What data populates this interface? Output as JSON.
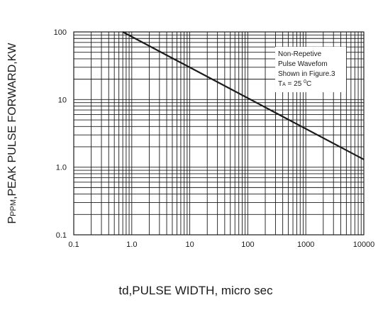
{
  "chart_data": {
    "type": "line",
    "xscale": "log",
    "yscale": "log",
    "xlim": [
      0.1,
      10000
    ],
    "ylim": [
      0.1,
      100
    ],
    "grid": true,
    "xticks": [
      "0.1",
      "1.0",
      "10",
      "100",
      "1000",
      "10000"
    ],
    "yticks": [
      "0.1",
      "1.0",
      "10",
      "100"
    ],
    "xlabel": "td,PULSE WIDTH, micro sec",
    "ylabel_main": "P",
    "ylabel_sub": "PPM",
    "ylabel_rest": ",PEAK PULSE FORWARD,KW",
    "series": [
      {
        "x": [
          0.7,
          10000
        ],
        "y": [
          100,
          1.3
        ]
      }
    ],
    "annotation": {
      "lines": [
        "Non-Repetive",
        "Pulse Wavefom",
        "Shown in Figure.3"
      ],
      "ta_main": "T",
      "ta_sub": "A",
      "ta_eq": " = 25 ",
      "ta_deg": "0",
      "ta_unit": "C"
    }
  }
}
